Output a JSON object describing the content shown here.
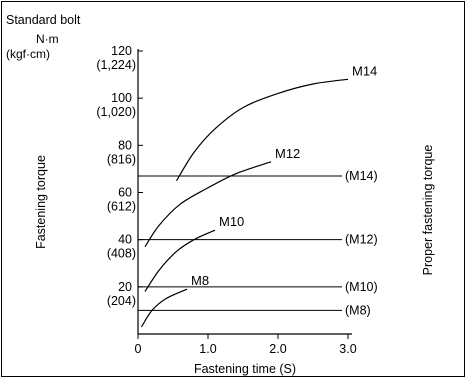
{
  "chart_data": {
    "type": "line",
    "title": "Standard bolt",
    "unit_primary": "N·m",
    "unit_secondary": "(kgf·cm)",
    "xlabel": "Fastening time (S)",
    "ylabel": "Fastening torque",
    "ylabel_right": "Proper fastening torque",
    "xlim": [
      0,
      3.0
    ],
    "ylim": [
      0,
      120
    ],
    "x_ticks": [
      {
        "value": 0,
        "label": "0"
      },
      {
        "value": 1.0,
        "label": "1.0"
      },
      {
        "value": 2.0,
        "label": "2.0"
      },
      {
        "value": 3.0,
        "label": "3.0"
      }
    ],
    "y_ticks": [
      {
        "value": 20,
        "label": "20",
        "sub": "(204)"
      },
      {
        "value": 40,
        "label": "40",
        "sub": "(408)"
      },
      {
        "value": 60,
        "label": "60",
        "sub": "(612)"
      },
      {
        "value": 80,
        "label": "80",
        "sub": "(816)"
      },
      {
        "value": 100,
        "label": "100",
        "sub": "(1,020)"
      },
      {
        "value": 120,
        "label": "120",
        "sub": "(1,224)"
      }
    ],
    "proper_torque": [
      {
        "label": "(M14)",
        "value": 67
      },
      {
        "label": "(M12)",
        "value": 40
      },
      {
        "label": "(M10)",
        "value": 20
      },
      {
        "label": "(M8)",
        "value": 10
      }
    ],
    "series": [
      {
        "name": "M14",
        "x": [
          0.55,
          0.8,
          1.1,
          1.5,
          2.0,
          2.5,
          3.0
        ],
        "y": [
          65,
          77,
          87,
          96,
          102,
          106,
          108
        ]
      },
      {
        "name": "M12",
        "x": [
          0.1,
          0.3,
          0.6,
          1.0,
          1.4,
          1.9
        ],
        "y": [
          37,
          46,
          55,
          62,
          68,
          73
        ]
      },
      {
        "name": "M10",
        "x": [
          0.1,
          0.3,
          0.55,
          0.8,
          1.1
        ],
        "y": [
          18,
          27,
          35,
          40,
          44
        ]
      },
      {
        "name": "M8",
        "x": [
          0.05,
          0.2,
          0.4,
          0.7
        ],
        "y": [
          3,
          10,
          15,
          19
        ]
      }
    ]
  }
}
